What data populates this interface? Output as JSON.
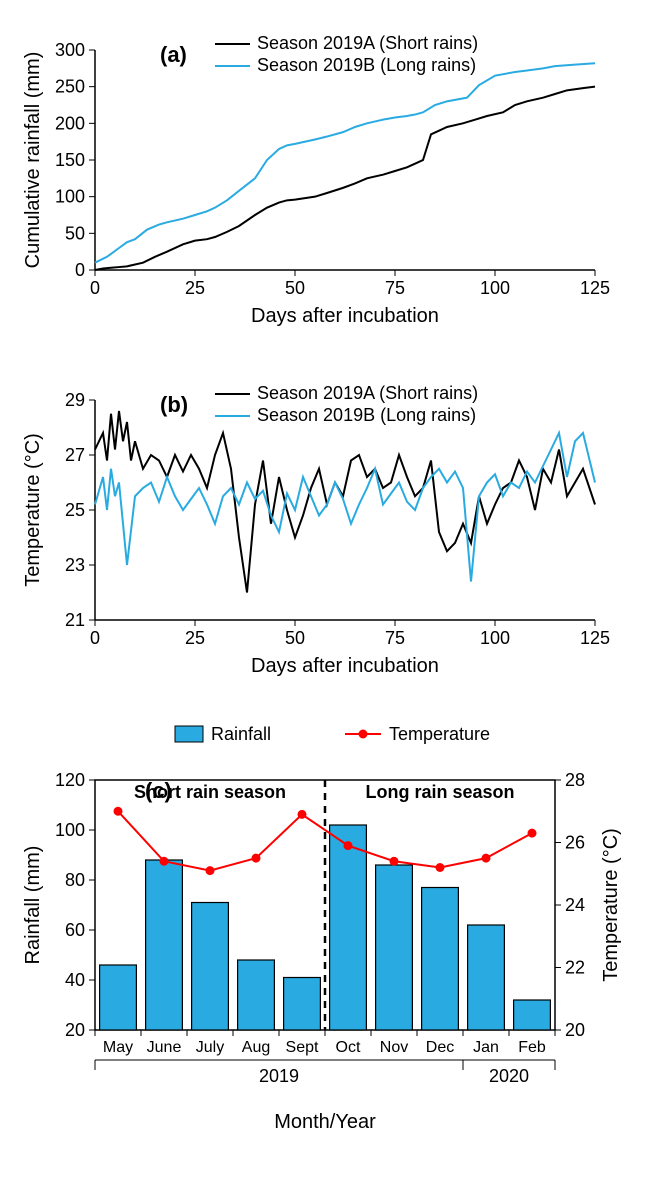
{
  "chart_a": {
    "type": "line",
    "panel_letter": "(a)",
    "xlabel": "Days after incubation",
    "ylabel": "Cumulative rainfall (mm)",
    "xlim": [
      0,
      125
    ],
    "ylim": [
      0,
      300
    ],
    "xtick_step": 25,
    "ytick_step": 50,
    "line_width": 2,
    "colors": {
      "A": "#000000",
      "B": "#29abe2"
    },
    "legend": [
      "Season 2019A (Short rains)",
      "Season 2019B (Long rains)"
    ],
    "series_A": [
      [
        0,
        0
      ],
      [
        2,
        2
      ],
      [
        4,
        3
      ],
      [
        6,
        4
      ],
      [
        8,
        5
      ],
      [
        12,
        10
      ],
      [
        15,
        18
      ],
      [
        18,
        25
      ],
      [
        22,
        35
      ],
      [
        25,
        40
      ],
      [
        28,
        42
      ],
      [
        30,
        45
      ],
      [
        33,
        52
      ],
      [
        36,
        60
      ],
      [
        40,
        75
      ],
      [
        43,
        85
      ],
      [
        46,
        92
      ],
      [
        48,
        95
      ],
      [
        50,
        96
      ],
      [
        55,
        100
      ],
      [
        58,
        105
      ],
      [
        62,
        112
      ],
      [
        65,
        118
      ],
      [
        68,
        125
      ],
      [
        72,
        130
      ],
      [
        75,
        135
      ],
      [
        78,
        140
      ],
      [
        80,
        145
      ],
      [
        82,
        150
      ],
      [
        84,
        185
      ],
      [
        86,
        190
      ],
      [
        88,
        195
      ],
      [
        92,
        200
      ],
      [
        95,
        205
      ],
      [
        98,
        210
      ],
      [
        102,
        215
      ],
      [
        105,
        225
      ],
      [
        108,
        230
      ],
      [
        112,
        235
      ],
      [
        115,
        240
      ],
      [
        118,
        245
      ],
      [
        122,
        248
      ],
      [
        125,
        250
      ]
    ],
    "series_B": [
      [
        0,
        10
      ],
      [
        3,
        18
      ],
      [
        6,
        30
      ],
      [
        8,
        38
      ],
      [
        10,
        42
      ],
      [
        13,
        55
      ],
      [
        16,
        62
      ],
      [
        18,
        65
      ],
      [
        22,
        70
      ],
      [
        25,
        75
      ],
      [
        28,
        80
      ],
      [
        30,
        85
      ],
      [
        33,
        95
      ],
      [
        36,
        108
      ],
      [
        40,
        125
      ],
      [
        43,
        150
      ],
      [
        46,
        165
      ],
      [
        48,
        170
      ],
      [
        50,
        172
      ],
      [
        55,
        178
      ],
      [
        58,
        182
      ],
      [
        62,
        188
      ],
      [
        65,
        195
      ],
      [
        68,
        200
      ],
      [
        72,
        205
      ],
      [
        75,
        208
      ],
      [
        78,
        210
      ],
      [
        80,
        212
      ],
      [
        82,
        215
      ],
      [
        85,
        225
      ],
      [
        88,
        230
      ],
      [
        90,
        232
      ],
      [
        93,
        235
      ],
      [
        96,
        252
      ],
      [
        100,
        265
      ],
      [
        105,
        270
      ],
      [
        108,
        272
      ],
      [
        112,
        275
      ],
      [
        115,
        278
      ],
      [
        120,
        280
      ],
      [
        125,
        282
      ]
    ]
  },
  "chart_b": {
    "type": "line",
    "panel_letter": "(b)",
    "xlabel": "Days after incubation",
    "ylabel": "Temperature (°C)",
    "xlim": [
      0,
      125
    ],
    "ylim": [
      21,
      29
    ],
    "xtick_step": 25,
    "ytick_step": 2,
    "line_width": 2,
    "colors": {
      "A": "#000000",
      "B": "#29abe2"
    },
    "legend": [
      "Season 2019A (Short rains)",
      "Season 2019B (Long rains)"
    ],
    "series_A": [
      [
        0,
        27.2
      ],
      [
        2,
        27.8
      ],
      [
        3,
        26.8
      ],
      [
        4,
        28.5
      ],
      [
        5,
        27.2
      ],
      [
        6,
        28.6
      ],
      [
        7,
        27.5
      ],
      [
        8,
        28.2
      ],
      [
        9,
        26.8
      ],
      [
        10,
        27.5
      ],
      [
        12,
        26.5
      ],
      [
        14,
        27.0
      ],
      [
        16,
        26.8
      ],
      [
        18,
        26.2
      ],
      [
        20,
        27.0
      ],
      [
        22,
        26.4
      ],
      [
        24,
        27.0
      ],
      [
        26,
        26.5
      ],
      [
        28,
        25.8
      ],
      [
        30,
        27.0
      ],
      [
        32,
        27.8
      ],
      [
        34,
        26.5
      ],
      [
        36,
        24.0
      ],
      [
        38,
        22.0
      ],
      [
        40,
        25.2
      ],
      [
        42,
        26.8
      ],
      [
        44,
        24.5
      ],
      [
        46,
        26.2
      ],
      [
        48,
        25.0
      ],
      [
        50,
        24.0
      ],
      [
        52,
        24.8
      ],
      [
        54,
        25.8
      ],
      [
        56,
        26.5
      ],
      [
        58,
        25.2
      ],
      [
        60,
        26.0
      ],
      [
        62,
        25.5
      ],
      [
        64,
        26.8
      ],
      [
        66,
        27.0
      ],
      [
        68,
        26.2
      ],
      [
        70,
        26.5
      ],
      [
        72,
        25.8
      ],
      [
        74,
        26.0
      ],
      [
        76,
        27.0
      ],
      [
        78,
        26.2
      ],
      [
        80,
        25.5
      ],
      [
        82,
        25.8
      ],
      [
        84,
        26.8
      ],
      [
        86,
        24.2
      ],
      [
        88,
        23.5
      ],
      [
        90,
        23.8
      ],
      [
        92,
        24.5
      ],
      [
        94,
        23.8
      ],
      [
        96,
        25.5
      ],
      [
        98,
        24.5
      ],
      [
        100,
        25.2
      ],
      [
        102,
        25.8
      ],
      [
        104,
        26.0
      ],
      [
        106,
        26.8
      ],
      [
        108,
        26.2
      ],
      [
        110,
        25.0
      ],
      [
        112,
        26.5
      ],
      [
        114,
        26.0
      ],
      [
        116,
        27.2
      ],
      [
        118,
        25.5
      ],
      [
        120,
        26.0
      ],
      [
        122,
        26.5
      ],
      [
        125,
        25.2
      ]
    ],
    "series_B": [
      [
        0,
        25.2
      ],
      [
        2,
        26.2
      ],
      [
        3,
        25.0
      ],
      [
        4,
        26.5
      ],
      [
        5,
        25.5
      ],
      [
        6,
        26.0
      ],
      [
        8,
        23.0
      ],
      [
        10,
        25.5
      ],
      [
        12,
        25.8
      ],
      [
        14,
        26.0
      ],
      [
        16,
        25.3
      ],
      [
        18,
        26.2
      ],
      [
        20,
        25.5
      ],
      [
        22,
        25.0
      ],
      [
        24,
        25.4
      ],
      [
        26,
        25.8
      ],
      [
        28,
        25.2
      ],
      [
        30,
        24.5
      ],
      [
        32,
        25.5
      ],
      [
        34,
        25.8
      ],
      [
        36,
        25.2
      ],
      [
        38,
        26.0
      ],
      [
        40,
        25.4
      ],
      [
        42,
        25.7
      ],
      [
        44,
        24.8
      ],
      [
        46,
        24.2
      ],
      [
        48,
        25.6
      ],
      [
        50,
        25.0
      ],
      [
        52,
        26.2
      ],
      [
        54,
        25.5
      ],
      [
        56,
        24.8
      ],
      [
        58,
        25.2
      ],
      [
        60,
        26.0
      ],
      [
        62,
        25.4
      ],
      [
        64,
        24.5
      ],
      [
        66,
        25.2
      ],
      [
        68,
        25.8
      ],
      [
        70,
        26.5
      ],
      [
        72,
        25.2
      ],
      [
        74,
        25.6
      ],
      [
        76,
        26.0
      ],
      [
        78,
        25.3
      ],
      [
        80,
        25.0
      ],
      [
        82,
        25.8
      ],
      [
        84,
        26.2
      ],
      [
        86,
        26.5
      ],
      [
        88,
        26.0
      ],
      [
        90,
        26.4
      ],
      [
        92,
        25.8
      ],
      [
        94,
        22.4
      ],
      [
        96,
        25.5
      ],
      [
        98,
        26.0
      ],
      [
        100,
        26.3
      ],
      [
        102,
        25.5
      ],
      [
        104,
        26.0
      ],
      [
        106,
        25.8
      ],
      [
        108,
        26.4
      ],
      [
        110,
        26.0
      ],
      [
        112,
        26.6
      ],
      [
        114,
        27.2
      ],
      [
        116,
        27.8
      ],
      [
        118,
        26.2
      ],
      [
        120,
        27.5
      ],
      [
        122,
        27.8
      ],
      [
        125,
        26.0
      ]
    ]
  },
  "chart_c": {
    "type": "bar_line",
    "panel_letter": "(c)",
    "xlabel": "Month/Year",
    "y1label": "Rainfall (mm)",
    "y2label": "Temperature (°C)",
    "y1lim": [
      20,
      120
    ],
    "y2lim": [
      20,
      28
    ],
    "y1tick_step": 20,
    "y2tick_step": 2,
    "bar_color": "#29abe2",
    "bar_border": "#000000",
    "line_color": "#ff0000",
    "marker_color": "#ff0000",
    "legend": [
      "Rainfall",
      "Temperature"
    ],
    "annotations": [
      "Short rain season",
      "Long rain season"
    ],
    "year_groups": [
      {
        "label": "2019",
        "span": [
          0,
          8
        ]
      },
      {
        "label": "2020",
        "span": [
          8,
          10
        ]
      }
    ],
    "months": [
      "May",
      "June",
      "July",
      "Aug",
      "Sept",
      "Oct",
      "Nov",
      "Dec",
      "Jan",
      "Feb"
    ],
    "rainfall": [
      46,
      88,
      71,
      48,
      41,
      102,
      86,
      77,
      62,
      32
    ],
    "temperature": [
      27.0,
      25.4,
      25.1,
      25.5,
      26.9,
      25.9,
      25.4,
      25.2,
      25.5,
      26.3
    ],
    "divider_after_index": 5
  },
  "styling": {
    "background_color": "#ffffff",
    "axis_color": "#000000",
    "tick_fontsize": 18,
    "label_fontsize": 20,
    "letter_fontsize": 22
  }
}
